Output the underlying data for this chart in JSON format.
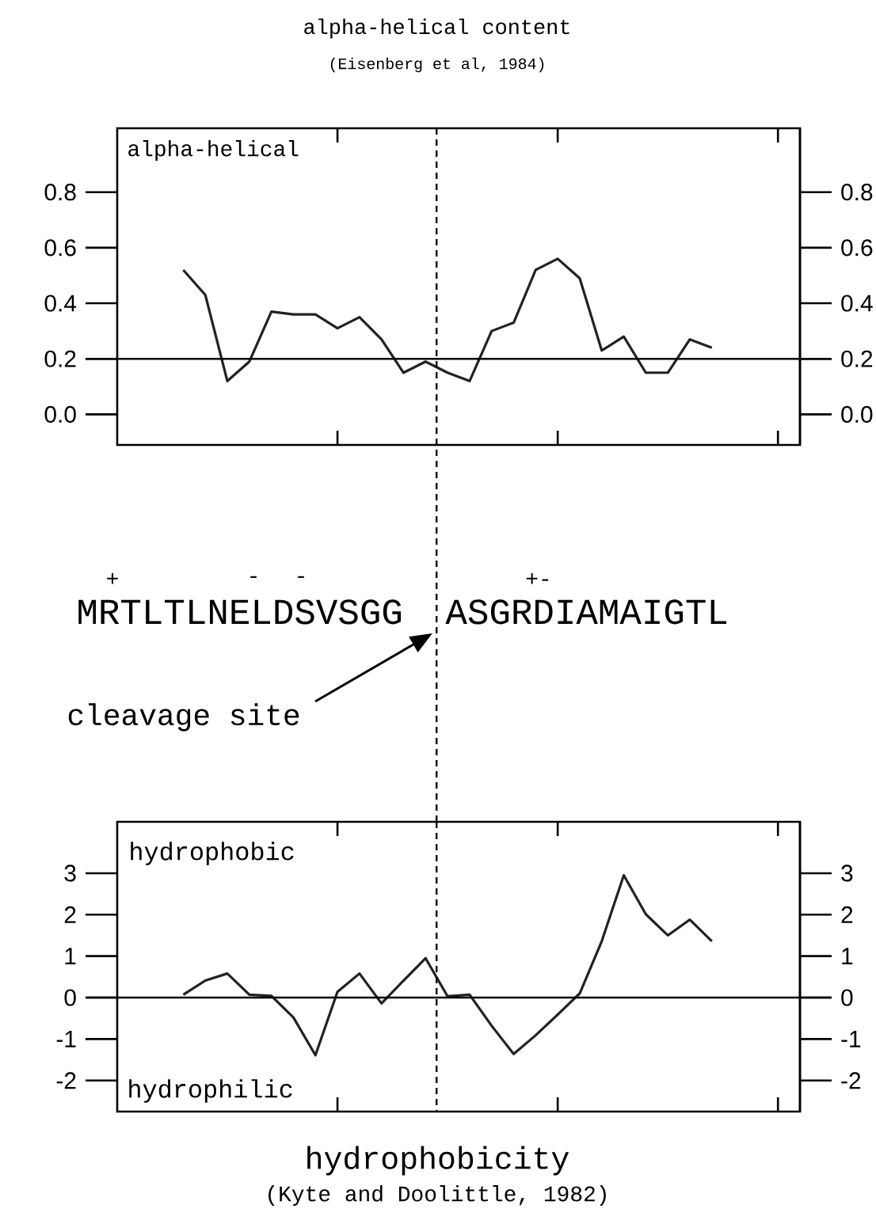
{
  "chart_data": [
    {
      "type": "line",
      "title": "alpha-helical content",
      "subtitle": "(Eisenberg et al, 1984)",
      "color": "#222222",
      "categories": [
        null,
        null,
        null,
        null,
        null,
        null,
        null,
        null,
        null,
        null,
        null,
        null,
        null,
        null,
        null,
        null,
        null,
        null,
        null,
        null,
        null,
        null,
        null,
        null,
        null
      ],
      "values": [
        0.52,
        0.43,
        0.12,
        0.19,
        0.37,
        0.36,
        0.36,
        0.31,
        0.35,
        0.27,
        0.15,
        0.19,
        0.15,
        0.12,
        0.3,
        0.33,
        0.52,
        0.56,
        0.49,
        0.23,
        0.28,
        0.15,
        0.15,
        0.27,
        0.24
      ],
      "ylim": [
        -0.11,
        1.03
      ],
      "yticks": [
        {
          "value": 0,
          "label": "0.0"
        },
        {
          "value": 0.2,
          "label": "0.2"
        },
        {
          "value": 0.4,
          "label": "0.4"
        },
        {
          "value": 0.6,
          "label": "0.6"
        },
        {
          "value": 0.8,
          "label": "0.8"
        }
      ],
      "y2lim": [
        -0.11,
        1.03
      ],
      "y2ticks": [
        {
          "value": 0,
          "label": "0.0"
        },
        {
          "value": 0.2,
          "label": "0.2"
        },
        {
          "value": 0.4,
          "label": "0.4"
        },
        {
          "value": 0.6,
          "label": "0.6"
        },
        {
          "value": 0.8,
          "label": "0.8"
        }
      ],
      "ref_lines": [
        {
          "axis": "y",
          "value": 0.2
        }
      ],
      "annotations": [
        "alpha-helical",
        "MRTLTLNELDSVSGG",
        "ASGRDIAMAIGTL",
        "+",
        "-",
        "-",
        "+-",
        "cleavage site"
      ]
    },
    {
      "type": "line",
      "title": "hydrophobicity",
      "subtitle": "(Kyte and Doolittle, 1982)",
      "color": "#222222",
      "categories": [
        null,
        null,
        null,
        null,
        null,
        null,
        null,
        null,
        null,
        null,
        null,
        null,
        null,
        null,
        null,
        null,
        null,
        null,
        null,
        null,
        null,
        null,
        null,
        null,
        null
      ],
      "values": [
        0.07,
        0.41,
        0.58,
        0.07,
        0.04,
        -0.48,
        -1.39,
        0.14,
        0.58,
        -0.14,
        0.41,
        0.95,
        0.03,
        0.07,
        -0.68,
        -1.36,
        -0.91,
        -0.41,
        0.1,
        1.36,
        2.95,
        2.01,
        1.5,
        1.88,
        1.36
      ],
      "ylim": [
        -2.75,
        4.24
      ],
      "yticks": [
        {
          "value": -2,
          "label": "-2"
        },
        {
          "value": -1,
          "label": "-1"
        },
        {
          "value": 0,
          "label": "0"
        },
        {
          "value": 1,
          "label": "1"
        },
        {
          "value": 2,
          "label": "2"
        },
        {
          "value": 3,
          "label": "3"
        }
      ],
      "y2lim": [
        -2.75,
        4.24
      ],
      "y2ticks": [
        {
          "value": -2,
          "label": "-2"
        },
        {
          "value": -1,
          "label": "-1"
        },
        {
          "value": 0,
          "label": "0"
        },
        {
          "value": 1,
          "label": "1"
        },
        {
          "value": 2,
          "label": "2"
        },
        {
          "value": 3,
          "label": "3"
        }
      ],
      "ref_lines": [
        {
          "axis": "y",
          "value": 0
        }
      ],
      "annotations": [
        "hydrophobic",
        "hydrophilic"
      ]
    }
  ]
}
